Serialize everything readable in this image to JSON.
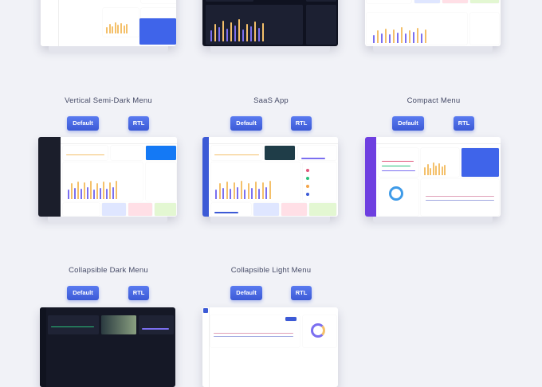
{
  "previews": [
    {
      "id": "vertical-semi-dark-menu",
      "title": "Vertical Semi-Dark Menu",
      "default_label": "Default",
      "rtl_label": "RTL"
    },
    {
      "id": "saas-app",
      "title": "SaaS App",
      "default_label": "Default",
      "rtl_label": "RTL"
    },
    {
      "id": "compact-menu",
      "title": "Compact Menu",
      "default_label": "Default",
      "rtl_label": "RTL"
    },
    {
      "id": "collapsible-dark-menu",
      "title": "Collapsible Dark Menu",
      "default_label": "Default",
      "rtl_label": "RTL"
    },
    {
      "id": "collapsible-light-menu",
      "title": "Collapsible Light Menu",
      "default_label": "Default",
      "rtl_label": "RTL"
    }
  ],
  "colors": {
    "background": "#f1f2f7",
    "button": "#4463e2",
    "bar_primary": "#7b6ff0",
    "bar_secondary": "#f4c06a",
    "dark_panel": "#1c2032",
    "purple_sidebar": "#6e3fe0"
  }
}
